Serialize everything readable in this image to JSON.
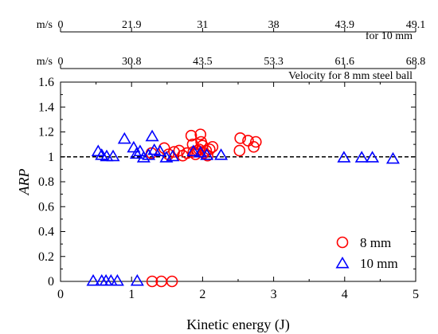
{
  "chart_data": {
    "type": "scatter",
    "xlabel": "Kinetic energy (J)",
    "ylabel": "ARP",
    "xlim": [
      0,
      5
    ],
    "ylim": [
      0,
      1.6
    ],
    "xticks": [
      "0",
      "1",
      "2",
      "3",
      "4",
      "5"
    ],
    "yticks": [
      "0",
      "0.2",
      "0.4",
      "0.6",
      "0.8",
      "1",
      "1.2",
      "1.4",
      "1.6"
    ],
    "reference_line": {
      "y": 1,
      "style": "dashed"
    },
    "top_axes": [
      {
        "unit": "m/s",
        "title": "for 10 mm",
        "ticks": [
          {
            "x": 0,
            "label": "0"
          },
          {
            "x": 1,
            "label": "21.9"
          },
          {
            "x": 2,
            "label": "31"
          },
          {
            "x": 3,
            "label": "38"
          },
          {
            "x": 4,
            "label": "43.9"
          },
          {
            "x": 5,
            "label": "49.1"
          }
        ]
      },
      {
        "unit": "m/s",
        "title": "Velocity for 8 mm steel ball",
        "ticks": [
          {
            "x": 0,
            "label": "0"
          },
          {
            "x": 1,
            "label": "30.8"
          },
          {
            "x": 2,
            "label": "43.5"
          },
          {
            "x": 3,
            "label": "53.3"
          },
          {
            "x": 4,
            "label": "61.6"
          },
          {
            "x": 5,
            "label": "68.8"
          }
        ]
      }
    ],
    "legend_position": "bottom-right",
    "series": [
      {
        "name": "8 mm",
        "marker": "circle",
        "color": "#ff0000",
        "points": [
          [
            1.29,
            0.0
          ],
          [
            1.42,
            0.0
          ],
          [
            1.57,
            0.0
          ],
          [
            1.28,
            1.03
          ],
          [
            1.46,
            1.07
          ],
          [
            1.52,
            1.02
          ],
          [
            1.6,
            1.04
          ],
          [
            1.67,
            1.05
          ],
          [
            1.72,
            1.01
          ],
          [
            1.78,
            1.03
          ],
          [
            1.84,
            1.17
          ],
          [
            1.86,
            1.1
          ],
          [
            1.87,
            1.04
          ],
          [
            1.9,
            1.02
          ],
          [
            1.93,
            1.05
          ],
          [
            1.95,
            1.06
          ],
          [
            1.97,
            1.18
          ],
          [
            1.98,
            1.12
          ],
          [
            2.0,
            1.09
          ],
          [
            2.02,
            1.03
          ],
          [
            2.05,
            1.05
          ],
          [
            2.07,
            1.01
          ],
          [
            2.1,
            1.06
          ],
          [
            2.14,
            1.08
          ],
          [
            2.52,
            1.05
          ],
          [
            2.53,
            1.15
          ],
          [
            2.64,
            1.13
          ],
          [
            2.72,
            1.08
          ],
          [
            2.75,
            1.12
          ]
        ]
      },
      {
        "name": "10 mm",
        "marker": "triangle",
        "color": "#0000ff",
        "points": [
          [
            0.46,
            0.0
          ],
          [
            0.58,
            0.0
          ],
          [
            0.64,
            0.0
          ],
          [
            0.71,
            0.0
          ],
          [
            0.8,
            0.0
          ],
          [
            1.08,
            0.0
          ],
          [
            0.53,
            1.04
          ],
          [
            0.58,
            1.01
          ],
          [
            0.65,
            1.0
          ],
          [
            0.74,
            1.0
          ],
          [
            0.9,
            1.14
          ],
          [
            1.03,
            1.07
          ],
          [
            1.07,
            1.02
          ],
          [
            1.12,
            1.04
          ],
          [
            1.17,
            0.99
          ],
          [
            1.24,
            1.01
          ],
          [
            1.29,
            1.16
          ],
          [
            1.32,
            1.05
          ],
          [
            1.4,
            1.04
          ],
          [
            1.49,
            0.99
          ],
          [
            1.58,
            1.0
          ],
          [
            1.87,
            1.04
          ],
          [
            1.97,
            1.03
          ],
          [
            2.06,
            1.01
          ],
          [
            2.26,
            1.01
          ],
          [
            3.99,
            0.99
          ],
          [
            4.24,
            0.99
          ],
          [
            4.39,
            0.99
          ],
          [
            4.68,
            0.98
          ]
        ]
      }
    ]
  }
}
